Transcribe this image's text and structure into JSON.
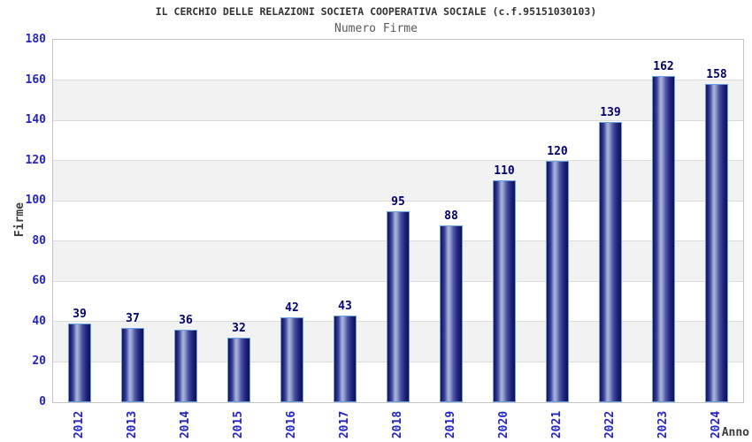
{
  "chart_data": {
    "type": "bar",
    "title": "IL CERCHIO DELLE RELAZIONI SOCIETA COOPERATIVA SOCIALE (c.f.95151030103)",
    "subtitle": "Numero Firme",
    "xlabel": "Anno",
    "ylabel": "Firme",
    "categories": [
      "2012",
      "2013",
      "2014",
      "2015",
      "2016",
      "2017",
      "2018",
      "2019",
      "2020",
      "2021",
      "2022",
      "2023",
      "2024"
    ],
    "values": [
      39,
      37,
      36,
      32,
      42,
      43,
      95,
      88,
      110,
      120,
      139,
      162,
      158
    ],
    "ylim": [
      0,
      180
    ],
    "ytick_step": 20,
    "ytick_labels": [
      "0",
      "20",
      "40",
      "60",
      "80",
      "100",
      "120",
      "140",
      "160",
      "180"
    ],
    "grid": true,
    "legend": "none",
    "band_pattern": "alternating horizontal bands every 20 units",
    "colors": {
      "background": "#ffffff",
      "title": "#333333",
      "subtitle": "#595959",
      "tick_label": "#2323cc",
      "value_label": "#00006e",
      "axis_title": "#3c3c3c",
      "band": "#f2f2f2",
      "gridline": "#dcdcdc",
      "plot_border": "#c4c4c4",
      "bar_border": "#69a1e4",
      "bar_gradient": [
        "#12125e",
        "#353e97",
        "#aab4dc",
        "#9aa3d0",
        "#4a51a3",
        "#23277e",
        "#0e0e55"
      ]
    }
  }
}
